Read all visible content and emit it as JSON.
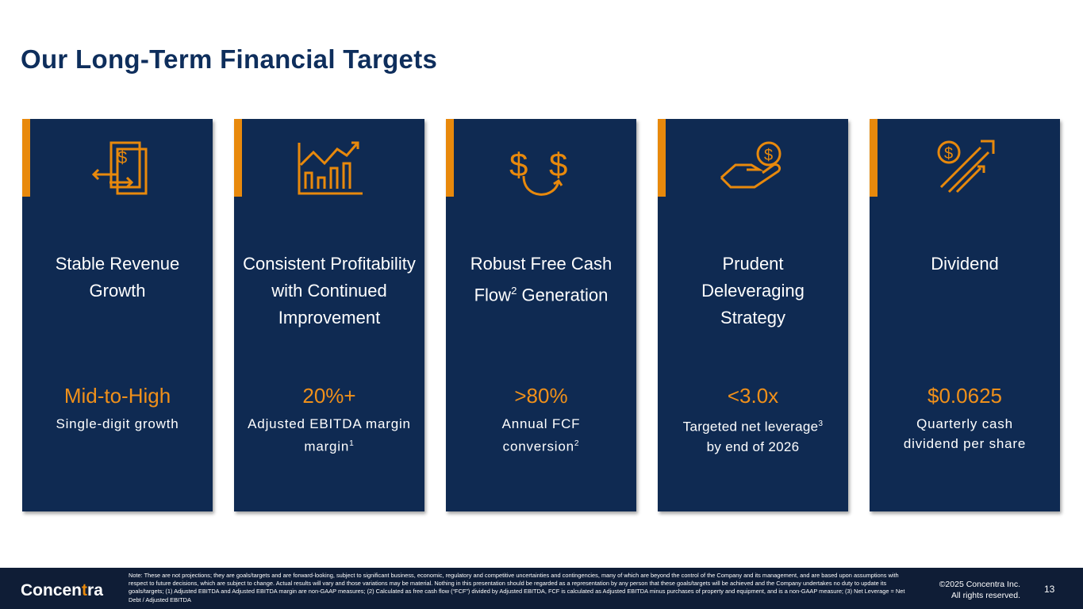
{
  "title": "Our Long-Term Financial Targets",
  "cards": [
    {
      "icon": "revenue-documents-icon",
      "heading": "Stable Revenue Growth",
      "value": "Mid-to-High",
      "desc": "Single-digit growth"
    },
    {
      "icon": "growth-chart-icon",
      "heading": "Consistent Profitability with Continued Improvement",
      "value": "20%+",
      "desc": "Adjusted EBITDA margin",
      "desc_sup": "1"
    },
    {
      "icon": "cash-flow-icon",
      "heading": "Robust Free Cash Flow",
      "heading_sup": "2",
      "heading_after": "Generation",
      "value": ">80%",
      "desc": "Annual FCF conversion",
      "desc_sup": "2"
    },
    {
      "icon": "hand-coin-icon",
      "heading": "Prudent Deleveraging Strategy",
      "value": "<3.0x",
      "desc": "Targeted net leverage",
      "desc_sup": "3",
      "desc_after": "by end of 2026"
    },
    {
      "icon": "dividend-arrow-icon",
      "heading": "Dividend",
      "value": "$0.0625",
      "desc": "Quarterly cash dividend per share"
    }
  ],
  "footer": {
    "logo_pre": "Concen",
    "logo_t": "t",
    "logo_post": "ra",
    "note": "Note: These are not projections; they are goals/targets and are forward-looking, subject to significant business, economic, regulatory and competitive uncertainties and contingencies, many of which are beyond the control of the Company and its management, and are based upon assumptions with respect to future decisions, which are subject to change. Actual results will vary and those variations may be material. Nothing in this presentation should be regarded as a representation by any person that these goals/targets will be achieved and the Company undertakes no duty to update its goals/targets; (1) Adjusted EBITDA and Adjusted EBITDA margin are non-GAAP measures; (2) Calculated as free cash flow (“FCF”) divided by Adjusted EBITDA, FCF is calculated as Adjusted EBITDA minus purchases of property and equipment, and is a non-GAAP measure; (3) Net Leverage = Net Debt / Adjusted EBITDA",
    "copyright_1": "©2025 Concentra Inc.",
    "copyright_2": "All rights reserved.",
    "page": "13"
  },
  "colors": {
    "navy": "#0f2a52",
    "orange": "#e8890c",
    "title": "#0e2e5c"
  }
}
